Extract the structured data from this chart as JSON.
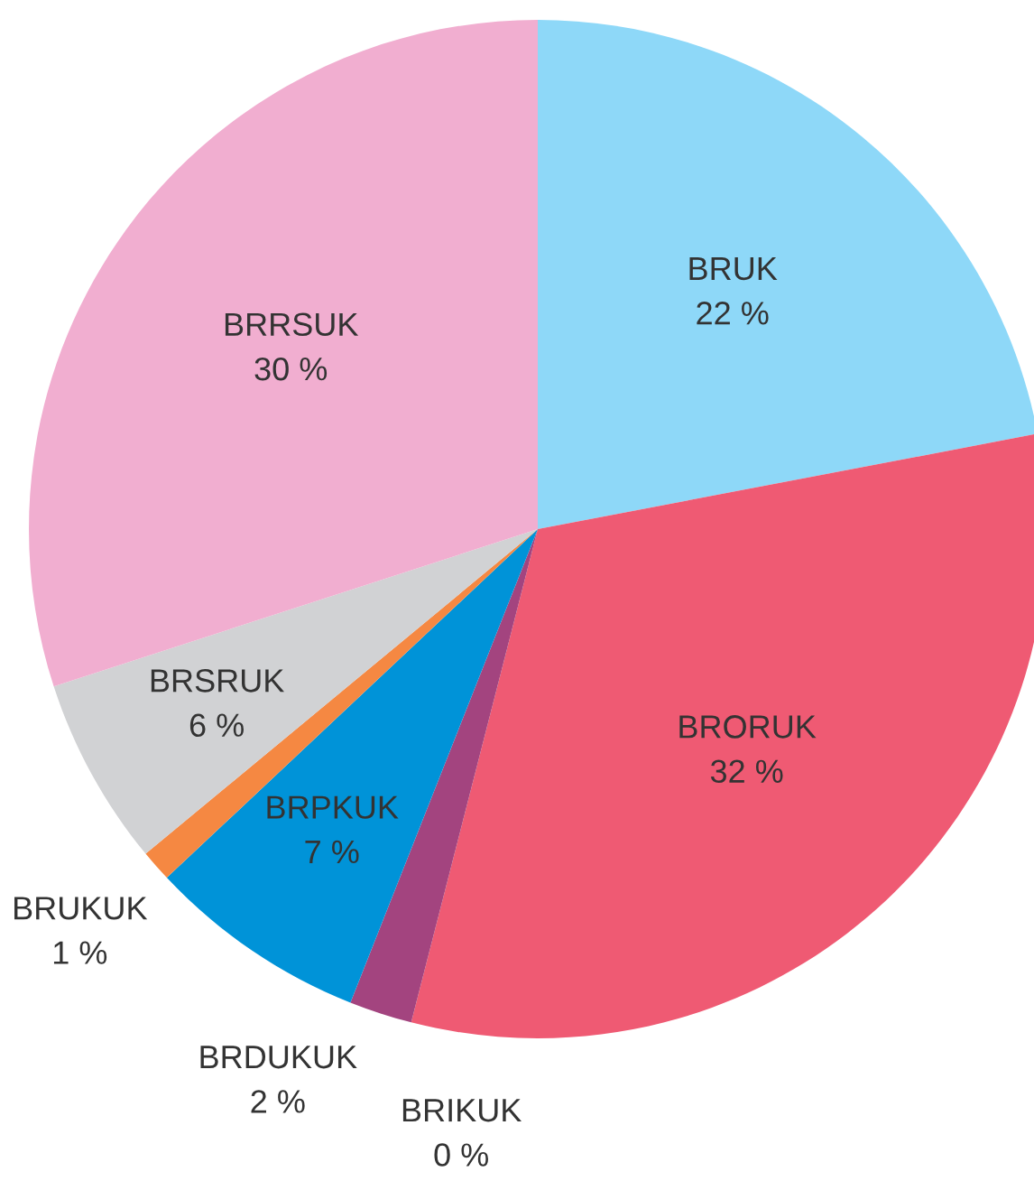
{
  "chart_data": {
    "type": "pie",
    "categories": [
      "BRUK",
      "BRORUK",
      "BRIKUK",
      "BRDUKUK",
      "BRPKUK",
      "BRUKUK",
      "BRSRUK",
      "BRRSUK"
    ],
    "values": [
      22,
      32,
      0,
      2,
      7,
      1,
      6,
      30
    ],
    "value_labels": [
      "22 %",
      "32 %",
      "0 %",
      "2 %",
      "7 %",
      "1 %",
      "6 %",
      "30 %"
    ],
    "colors": [
      "#8ed8f8",
      "#ef5a73",
      "#a6ce39",
      "#a3447f",
      "#0093d8",
      "#f58842",
      "#d1d2d4",
      "#f1aed0"
    ],
    "legend": false
  }
}
